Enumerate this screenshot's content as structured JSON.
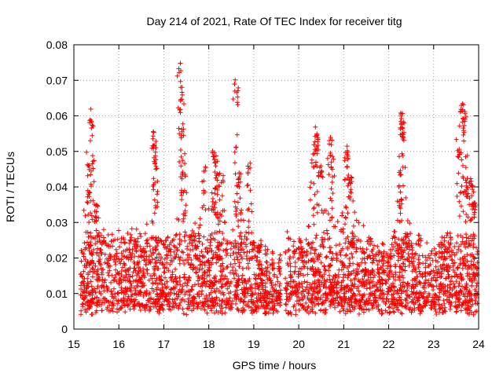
{
  "chart_data": {
    "type": "scatter",
    "title": "Day 214 of 2021, Rate Of TEC Index for receiver titg",
    "xlabel": "GPS time / hours",
    "ylabel": "ROTI / TECUs",
    "xlim": [
      15,
      24
    ],
    "ylim": [
      0,
      0.08
    ],
    "x_ticks": [
      15,
      16,
      17,
      18,
      19,
      20,
      21,
      22,
      23,
      24
    ],
    "y_ticks": [
      0,
      0.01,
      0.02,
      0.03,
      0.04,
      0.05,
      0.06,
      0.07,
      0.08
    ],
    "x_tick_labels": [
      "15",
      "16",
      "17",
      "18",
      "19",
      "20",
      "21",
      "22",
      "23",
      "24"
    ],
    "y_tick_labels": [
      "0",
      "0.01",
      "0.02",
      "0.03",
      "0.04",
      "0.05",
      "0.06",
      "0.07",
      "0.08"
    ],
    "grid": true,
    "marker": "+",
    "color": "#ff0000",
    "series": [
      {
        "name": "ROTI",
        "gaps": [
          [
            19.6,
            19.7
          ]
        ],
        "envelope": [
          [
            15.1,
            0.03
          ],
          [
            15.3,
            0.04
          ],
          [
            15.5,
            0.034
          ],
          [
            15.7,
            0.028
          ],
          [
            15.9,
            0.026
          ],
          [
            16.1,
            0.028
          ],
          [
            16.3,
            0.03
          ],
          [
            16.5,
            0.028
          ],
          [
            16.7,
            0.033
          ],
          [
            16.9,
            0.03
          ],
          [
            17.1,
            0.028
          ],
          [
            17.3,
            0.032
          ],
          [
            17.5,
            0.036
          ],
          [
            17.7,
            0.03
          ],
          [
            17.9,
            0.034
          ],
          [
            18.1,
            0.038
          ],
          [
            18.3,
            0.034
          ],
          [
            18.5,
            0.03
          ],
          [
            18.7,
            0.034
          ],
          [
            18.9,
            0.03
          ],
          [
            19.1,
            0.025
          ],
          [
            19.3,
            0.022
          ],
          [
            19.5,
            0.02
          ],
          [
            19.8,
            0.028
          ],
          [
            20.0,
            0.032
          ],
          [
            20.2,
            0.036
          ],
          [
            20.4,
            0.036
          ],
          [
            20.6,
            0.034
          ],
          [
            20.8,
            0.036
          ],
          [
            21.0,
            0.038
          ],
          [
            21.2,
            0.036
          ],
          [
            21.4,
            0.03
          ],
          [
            21.6,
            0.026
          ],
          [
            21.8,
            0.024
          ],
          [
            22.0,
            0.024
          ],
          [
            22.2,
            0.03
          ],
          [
            22.4,
            0.032
          ],
          [
            22.6,
            0.028
          ],
          [
            22.8,
            0.024
          ],
          [
            23.0,
            0.022
          ],
          [
            23.2,
            0.026
          ],
          [
            23.4,
            0.03
          ],
          [
            23.6,
            0.034
          ],
          [
            23.8,
            0.028
          ],
          [
            24.0,
            0.024
          ]
        ],
        "peaks": [
          [
            15.33,
            0.051
          ],
          [
            15.37,
            0.062
          ],
          [
            15.4,
            0.049
          ],
          [
            15.5,
            0.036
          ],
          [
            16.78,
            0.056
          ],
          [
            16.8,
            0.053
          ],
          [
            16.83,
            0.047
          ],
          [
            17.35,
            0.075
          ],
          [
            17.38,
            0.073
          ],
          [
            17.4,
            0.069
          ],
          [
            17.42,
            0.058
          ],
          [
            17.45,
            0.044
          ],
          [
            17.9,
            0.046
          ],
          [
            18.1,
            0.052
          ],
          [
            18.15,
            0.049
          ],
          [
            18.2,
            0.045
          ],
          [
            18.3,
            0.046
          ],
          [
            18.6,
            0.071
          ],
          [
            18.62,
            0.069
          ],
          [
            18.65,
            0.044
          ],
          [
            18.9,
            0.048
          ],
          [
            20.3,
            0.05
          ],
          [
            20.38,
            0.058
          ],
          [
            20.4,
            0.054
          ],
          [
            20.5,
            0.046
          ],
          [
            20.7,
            0.054
          ],
          [
            20.75,
            0.05
          ],
          [
            21.05,
            0.052
          ],
          [
            21.1,
            0.05
          ],
          [
            21.15,
            0.043
          ],
          [
            22.28,
            0.062
          ],
          [
            22.3,
            0.061
          ],
          [
            22.25,
            0.045
          ],
          [
            22.32,
            0.059
          ],
          [
            23.55,
            0.054
          ],
          [
            23.62,
            0.064
          ],
          [
            23.65,
            0.062
          ],
          [
            23.7,
            0.063
          ],
          [
            23.75,
            0.043
          ],
          [
            23.85,
            0.043
          ],
          [
            23.9,
            0.037
          ]
        ]
      }
    ]
  }
}
